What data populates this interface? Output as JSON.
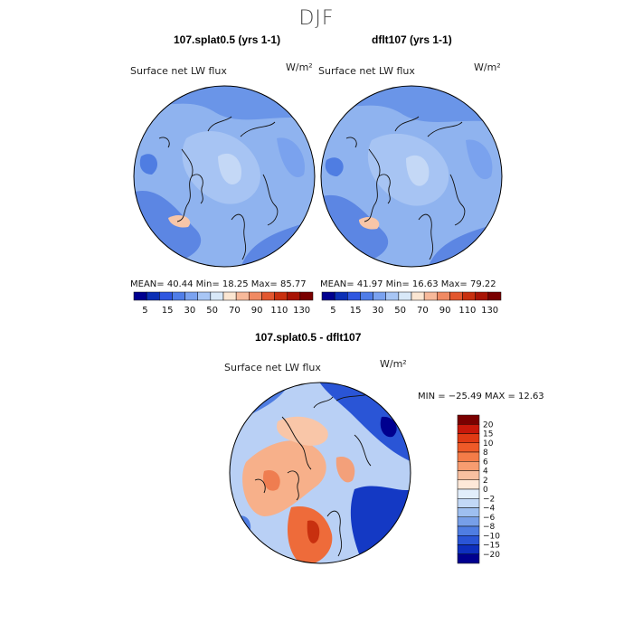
{
  "page_title": "DJF",
  "panel_left": {
    "title": "107.splat0.5 (yrs 1-1)",
    "variable": "Surface net LW flux",
    "units": "W/m²",
    "stats": "MEAN=  40.44   Min=   18.25   Max=  85.77"
  },
  "panel_right": {
    "title": "dflt107 (yrs 1-1)",
    "variable": "Surface net LW flux",
    "units": "W/m²",
    "stats": "MEAN=  41.97   Min=   16.63   Max=  79.22"
  },
  "panel_diff": {
    "title": "107.splat0.5 - dflt107",
    "variable": "Surface net LW flux",
    "units": "W/m²",
    "stats": "MIN = −25.49  MAX =   12.63"
  },
  "chart_data": [
    {
      "type": "heatmap",
      "title": "107.splat0.5 (yrs 1-1)",
      "projection": "north polar stereographic",
      "field": "Surface net LW flux",
      "units": "W/m2",
      "mean": 40.44,
      "min": 18.25,
      "max": 85.77,
      "colorbar": {
        "orientation": "horizontal",
        "levels": [
          "5",
          "15",
          "30",
          "50",
          "70",
          "90",
          "110",
          "130"
        ],
        "colors": [
          "#00008f",
          "#0b2fb5",
          "#2f57e0",
          "#4f7de8",
          "#7aa2f0",
          "#a8c6f5",
          "#d8e8f8",
          "#fbe6d2",
          "#f7b99a",
          "#f08a63",
          "#e2572f",
          "#c8300f",
          "#a81405",
          "#7a0000"
        ]
      }
    },
    {
      "type": "heatmap",
      "title": "dflt107 (yrs 1-1)",
      "projection": "north polar stereographic",
      "field": "Surface net LW flux",
      "units": "W/m2",
      "mean": 41.97,
      "min": 16.63,
      "max": 79.22,
      "colorbar": {
        "orientation": "horizontal",
        "levels": [
          "5",
          "15",
          "30",
          "50",
          "70",
          "90",
          "110",
          "130"
        ],
        "colors": [
          "#00008f",
          "#0b2fb5",
          "#2f57e0",
          "#4f7de8",
          "#7aa2f0",
          "#a8c6f5",
          "#d8e8f8",
          "#fbe6d2",
          "#f7b99a",
          "#f08a63",
          "#e2572f",
          "#c8300f",
          "#a81405",
          "#7a0000"
        ]
      }
    },
    {
      "type": "heatmap",
      "title": "107.splat0.5 - dflt107",
      "projection": "north polar stereographic",
      "field": "Surface net LW flux difference",
      "units": "W/m2",
      "min": -25.49,
      "max": 12.63,
      "colorbar": {
        "orientation": "vertical",
        "levels": [
          "20",
          "15",
          "10",
          "8",
          "6",
          "4",
          "2",
          "0",
          "−2",
          "−4",
          "−6",
          "−8",
          "−10",
          "−15",
          "−20"
        ],
        "colors": [
          "#7a0000",
          "#c8180a",
          "#e03a14",
          "#ee5a28",
          "#f47c48",
          "#f79c70",
          "#f9c0a0",
          "#fde8d8",
          "#e2eefb",
          "#c2d8f6",
          "#9ebff0",
          "#779fe8",
          "#4f7de2",
          "#2a55d6",
          "#0e2fbe",
          "#00008f"
        ]
      }
    }
  ]
}
